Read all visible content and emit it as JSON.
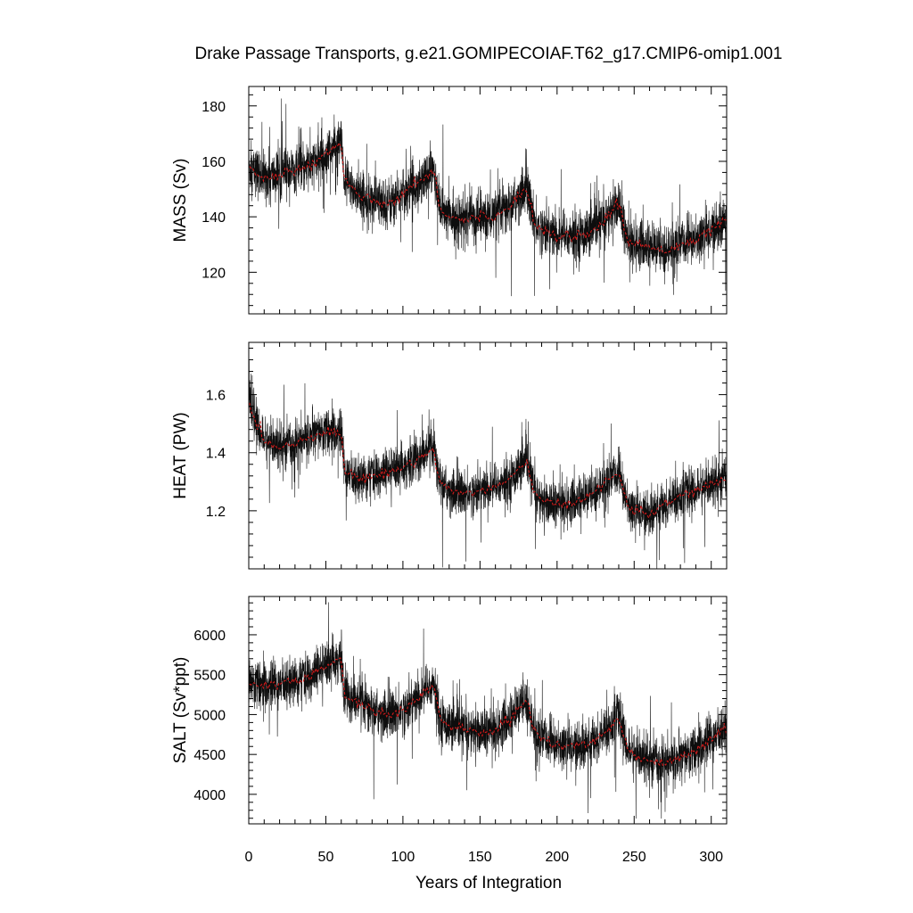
{
  "colors": {
    "monthly_series": "#000000",
    "annual_mean_series": "#d11a1a",
    "background": "#ffffff"
  },
  "chart_data": {
    "title": "Drake Passage Transports, g.e21.GOMIPECOIAF.T62_g17.CMIP6-omip1.001",
    "xlabel": "Years of Integration",
    "xlim": [
      0,
      310
    ],
    "xticks": [
      0,
      50,
      100,
      150,
      200,
      250,
      300
    ],
    "xtick_labels": [
      "0",
      "50",
      "100",
      "150",
      "200",
      "250",
      "300"
    ],
    "grid": false,
    "forcing_cycle_years": 62,
    "panels": [
      {
        "type": "line",
        "ylabel": "MASS (Sv)",
        "ylim": [
          105,
          187
        ],
        "yticks": [
          120,
          140,
          160,
          180
        ],
        "ytick_labels": [
          "120",
          "140",
          "160",
          "180"
        ],
        "series": [
          {
            "style": "monthly_noisy",
            "x": [
              0,
              10,
              20,
              30,
              40,
              50,
              60,
              62,
              70,
              80,
              90,
              100,
              110,
              120,
              124,
              130,
              140,
              150,
              160,
              170,
              180,
              186,
              190,
              200,
              210,
              220,
              230,
              240,
              246,
              250,
              260,
              270,
              280,
              290,
              300,
              310
            ],
            "values": [
              158,
              154,
              155,
              157,
              158,
              163,
              167,
              153,
              149,
              146,
              145,
              148,
              153,
              157,
              143,
              140,
              139,
              140,
              140,
              144,
              151,
              137,
              136,
              133,
              133,
              134,
              138,
              145,
              130,
              131,
              129,
              128,
              130,
              132,
              135,
              139
            ],
            "noise_amplitude": 8
          },
          {
            "style": "annual_mean",
            "x": [
              0,
              10,
              20,
              30,
              40,
              50,
              60,
              62,
              70,
              80,
              90,
              100,
              110,
              120,
              124,
              130,
              140,
              150,
              160,
              170,
              180,
              186,
              190,
              200,
              210,
              220,
              230,
              240,
              246,
              250,
              260,
              270,
              280,
              290,
              300,
              310
            ],
            "values": [
              158,
              154,
              155,
              157,
              158,
              163,
              167,
              153,
              149,
              146,
              145,
              148,
              153,
              157,
              143,
              140,
              139,
              140,
              140,
              144,
              151,
              137,
              136,
              133,
              133,
              134,
              138,
              145,
              130,
              131,
              129,
              128,
              130,
              132,
              135,
              139
            ]
          }
        ]
      },
      {
        "type": "line",
        "ylabel": "HEAT (PW)",
        "ylim": [
          1.0,
          1.78
        ],
        "yticks": [
          1.2,
          1.4,
          1.6
        ],
        "ytick_labels": [
          "1.2",
          "1.4",
          "1.6"
        ],
        "series": [
          {
            "style": "monthly_noisy",
            "x": [
              0,
              5,
              10,
              20,
              30,
              40,
              50,
              60,
              62,
              70,
              80,
              90,
              100,
              110,
              120,
              124,
              130,
              140,
              150,
              160,
              170,
              180,
              186,
              190,
              200,
              210,
              220,
              230,
              240,
              246,
              250,
              260,
              270,
              280,
              290,
              300,
              310
            ],
            "values": [
              1.58,
              1.5,
              1.44,
              1.42,
              1.43,
              1.46,
              1.47,
              1.47,
              1.34,
              1.31,
              1.32,
              1.33,
              1.35,
              1.38,
              1.41,
              1.3,
              1.27,
              1.26,
              1.27,
              1.28,
              1.31,
              1.37,
              1.26,
              1.23,
              1.22,
              1.23,
              1.25,
              1.29,
              1.33,
              1.22,
              1.2,
              1.19,
              1.22,
              1.25,
              1.27,
              1.29,
              1.31
            ],
            "noise_amplitude": 0.07
          },
          {
            "style": "annual_mean",
            "x": [
              0,
              5,
              10,
              20,
              30,
              40,
              50,
              60,
              62,
              70,
              80,
              90,
              100,
              110,
              120,
              124,
              130,
              140,
              150,
              160,
              170,
              180,
              186,
              190,
              200,
              210,
              220,
              230,
              240,
              246,
              250,
              260,
              270,
              280,
              290,
              300,
              310
            ],
            "values": [
              1.58,
              1.5,
              1.44,
              1.42,
              1.43,
              1.46,
              1.47,
              1.47,
              1.34,
              1.31,
              1.32,
              1.33,
              1.35,
              1.38,
              1.41,
              1.3,
              1.27,
              1.26,
              1.27,
              1.28,
              1.31,
              1.37,
              1.26,
              1.23,
              1.22,
              1.23,
              1.25,
              1.29,
              1.33,
              1.22,
              1.2,
              1.19,
              1.22,
              1.25,
              1.27,
              1.29,
              1.31
            ]
          }
        ]
      },
      {
        "type": "line",
        "ylabel": "SALT (Sv*ppt)",
        "ylim": [
          3630,
          6480
        ],
        "yticks": [
          4000,
          4500,
          5000,
          5500,
          6000
        ],
        "ytick_labels": [
          "4000",
          "4500",
          "5000",
          "5500",
          "6000"
        ],
        "series": [
          {
            "style": "monthly_noisy",
            "x": [
              0,
              10,
              20,
              30,
              40,
              50,
              60,
              62,
              70,
              80,
              90,
              100,
              110,
              120,
              124,
              130,
              140,
              150,
              160,
              170,
              180,
              186,
              190,
              200,
              210,
              220,
              230,
              240,
              246,
              250,
              260,
              270,
              280,
              290,
              300,
              310
            ],
            "values": [
              5400,
              5350,
              5380,
              5420,
              5470,
              5600,
              5720,
              5250,
              5150,
              5050,
              5000,
              5050,
              5200,
              5380,
              4950,
              4850,
              4800,
              4780,
              4800,
              4950,
              5200,
              4750,
              4700,
              4620,
              4600,
              4620,
              4750,
              4980,
              4550,
              4500,
              4420,
              4400,
              4450,
              4550,
              4700,
              4850
            ],
            "noise_amplitude": 270
          },
          {
            "style": "annual_mean",
            "x": [
              0,
              10,
              20,
              30,
              40,
              50,
              60,
              62,
              70,
              80,
              90,
              100,
              110,
              120,
              124,
              130,
              140,
              150,
              160,
              170,
              180,
              186,
              190,
              200,
              210,
              220,
              230,
              240,
              246,
              250,
              260,
              270,
              280,
              290,
              300,
              310
            ],
            "values": [
              5400,
              5350,
              5380,
              5420,
              5470,
              5600,
              5720,
              5250,
              5150,
              5050,
              5000,
              5050,
              5200,
              5380,
              4950,
              4850,
              4800,
              4780,
              4800,
              4950,
              5200,
              4750,
              4700,
              4620,
              4600,
              4620,
              4750,
              4980,
              4550,
              4500,
              4420,
              4400,
              4450,
              4550,
              4700,
              4850
            ]
          }
        ]
      }
    ]
  }
}
